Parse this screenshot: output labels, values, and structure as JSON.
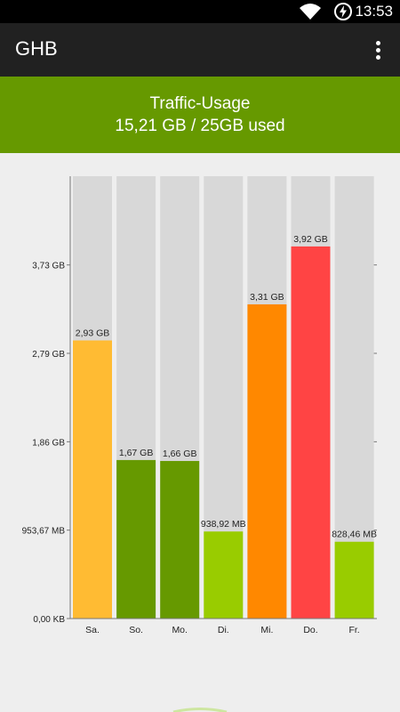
{
  "status_bar": {
    "time": "13:53"
  },
  "app_bar": {
    "title": "GHB"
  },
  "usage": {
    "title": "Traffic-Usage",
    "amount_text": "15,21 GB / 25GB used"
  },
  "chart_data": {
    "type": "bar",
    "categories": [
      "Sa.",
      "So.",
      "Mo.",
      "Di.",
      "Mi.",
      "Do.",
      "Fr."
    ],
    "values_gb": [
      2.93,
      1.67,
      1.66,
      0.917,
      3.31,
      3.92,
      0.809
    ],
    "value_labels": [
      "2,93 GB",
      "1,67 GB",
      "1,66 GB",
      "938,92 MB",
      "3,31 GB",
      "3,92 GB",
      "828,46 MB"
    ],
    "colors": [
      "#ffbb33",
      "#669900",
      "#669900",
      "#99cc00",
      "#ff8800",
      "#ff4444",
      "#99cc00"
    ],
    "background_bar_color": "#d8d8d8",
    "ylim_gb": [
      0,
      4.66
    ],
    "ytick_values_gb": [
      0,
      0.9313,
      1.8626,
      2.794,
      3.7253
    ],
    "ytick_labels": [
      "0,00 KB",
      "953,67 MB",
      "1,86 GB",
      "2,79 GB",
      "3,73 GB"
    ],
    "grid": false
  }
}
